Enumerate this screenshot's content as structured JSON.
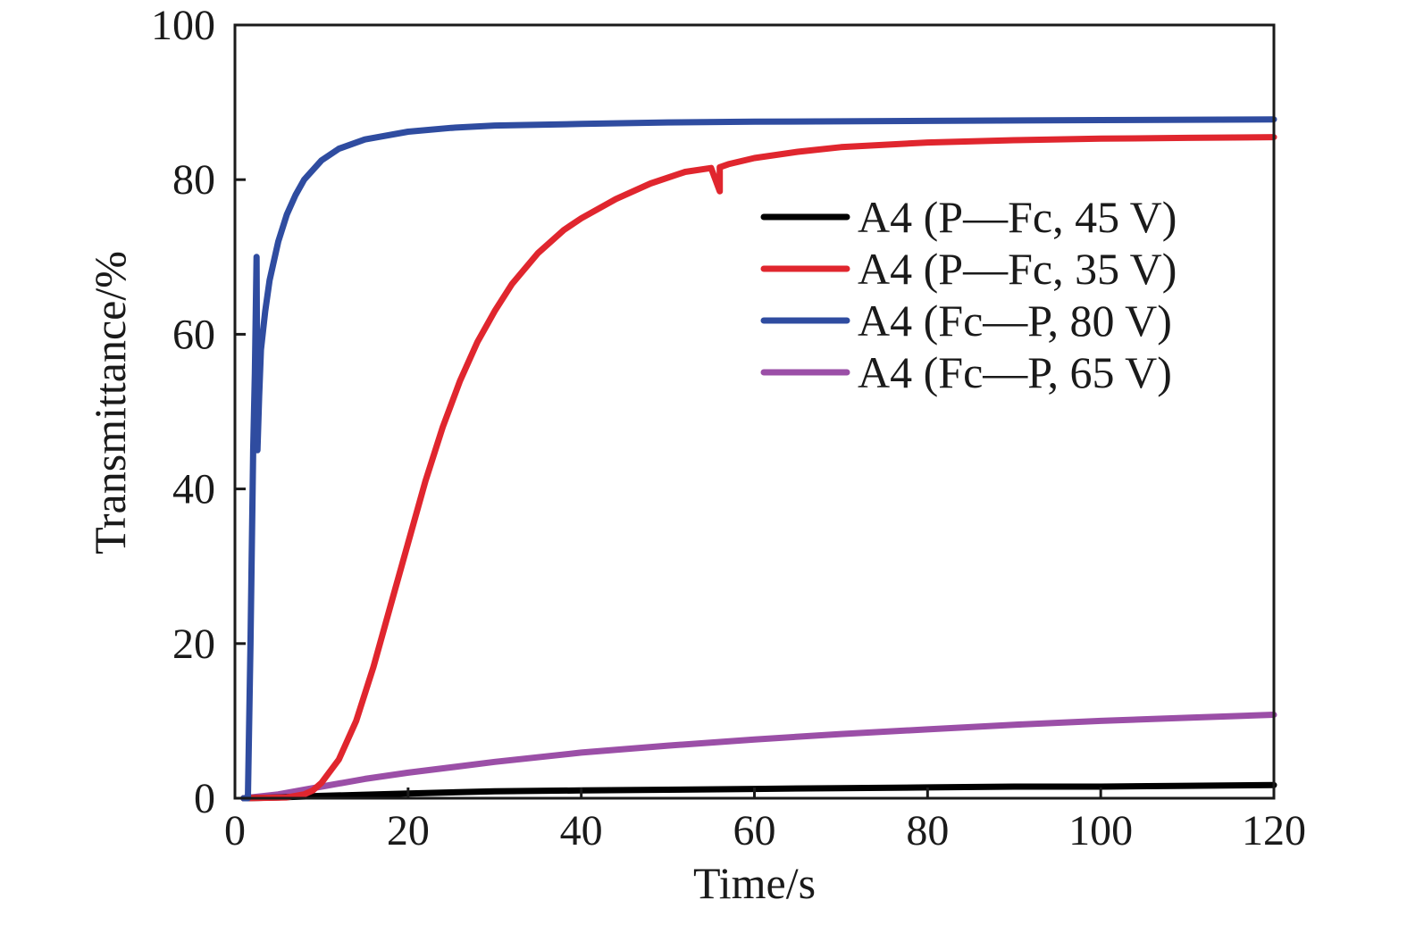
{
  "chart_data": {
    "type": "line",
    "xlabel": "Time/s",
    "ylabel": "Transmittance/%",
    "xlim": [
      0,
      120
    ],
    "ylim": [
      0,
      100
    ],
    "xticks": [
      "0",
      "20",
      "40",
      "60",
      "80",
      "100",
      "120"
    ],
    "yticks": [
      "0",
      "20",
      "40",
      "60",
      "80",
      "100"
    ],
    "grid": false,
    "legend_position": "upper-right",
    "series": [
      {
        "name": "A4 (P—Fc, 45 V)",
        "color": "#000000",
        "x": [
          1,
          5,
          10,
          20,
          30,
          40,
          50,
          60,
          70,
          80,
          90,
          100,
          110,
          120
        ],
        "y": [
          0,
          0.1,
          0.3,
          0.6,
          0.9,
          1.0,
          1.1,
          1.2,
          1.3,
          1.4,
          1.5,
          1.5,
          1.6,
          1.7
        ]
      },
      {
        "name": "A4 (P—Fc, 35 V)",
        "color": "#e0262e",
        "x": [
          1,
          6,
          8,
          9,
          10,
          12,
          14,
          16,
          18,
          20,
          22,
          24,
          26,
          28,
          30,
          32,
          35,
          38,
          40,
          44,
          48,
          52,
          55,
          56,
          56,
          57,
          60,
          65,
          70,
          80,
          90,
          100,
          110,
          120
        ],
        "y": [
          0,
          0.1,
          0.5,
          1.0,
          2.0,
          5.0,
          10.0,
          17.0,
          25.0,
          33.0,
          41.0,
          48.0,
          54.0,
          59.0,
          63.0,
          66.5,
          70.5,
          73.5,
          75.0,
          77.5,
          79.5,
          81.0,
          81.5,
          78.5,
          81.6,
          82.0,
          82.8,
          83.6,
          84.2,
          84.8,
          85.1,
          85.3,
          85.4,
          85.5
        ]
      },
      {
        "name": "A4 (Fc—P, 80 V)",
        "color": "#2f4ca0",
        "x": [
          1,
          1.5,
          1.8,
          2.1,
          2.3,
          2.5,
          2.6,
          2.8,
          3.0,
          3.5,
          4,
          5,
          6,
          7,
          8,
          10,
          12,
          15,
          20,
          25,
          30,
          40,
          50,
          60,
          80,
          100,
          120
        ],
        "y": [
          0,
          0,
          20,
          45,
          55,
          70,
          45,
          52,
          58,
          63,
          67,
          72,
          75.5,
          78,
          80,
          82.5,
          84,
          85.2,
          86.2,
          86.7,
          87.0,
          87.2,
          87.4,
          87.5,
          87.6,
          87.7,
          87.8
        ]
      },
      {
        "name": "A4 (Fc—P, 65 V)",
        "color": "#9b4fa7",
        "x": [
          1,
          5,
          10,
          15,
          20,
          25,
          30,
          40,
          50,
          60,
          70,
          80,
          90,
          100,
          110,
          120
        ],
        "y": [
          0,
          0.5,
          1.5,
          2.5,
          3.3,
          4.0,
          4.7,
          5.9,
          6.8,
          7.6,
          8.3,
          8.9,
          9.5,
          10.0,
          10.4,
          10.8
        ]
      }
    ]
  }
}
